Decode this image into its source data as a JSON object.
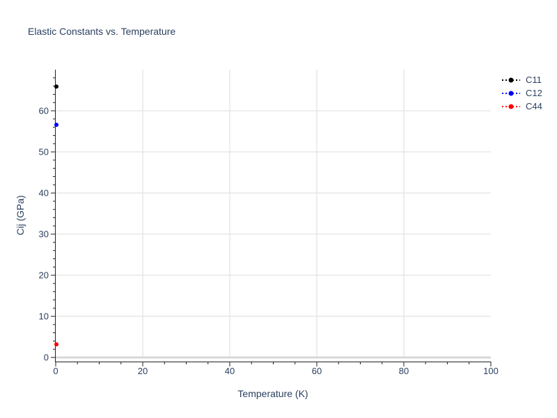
{
  "chart_data": {
    "type": "scatter",
    "title": "Elastic Constants vs. Temperature",
    "xlabel": "Temperature (K)",
    "ylabel": "Cij (GPa)",
    "xlim": [
      0,
      100
    ],
    "ylim": [
      -1,
      70
    ],
    "x_ticks": [
      0,
      20,
      40,
      60,
      80,
      100
    ],
    "y_ticks": [
      0,
      10,
      20,
      30,
      40,
      50,
      60
    ],
    "x_grid_ticks": [
      20,
      40,
      60,
      80
    ],
    "y_grid_ticks": [
      10,
      20,
      30,
      40,
      50,
      60
    ],
    "x_minor_step": 5,
    "y_minor_step": 2,
    "grid": true,
    "zeroline": true,
    "legend_position": "top-right-outside",
    "series": [
      {
        "name": "C11",
        "color": "#000000",
        "marker": "circle",
        "line_style": "dotted",
        "x": [
          0
        ],
        "y": [
          65.9
        ]
      },
      {
        "name": "C12",
        "color": "#0000ff",
        "marker": "circle",
        "line_style": "dotted",
        "x": [
          0
        ],
        "y": [
          56.6
        ]
      },
      {
        "name": "C44",
        "color": "#ff0000",
        "marker": "circle",
        "line_style": "dotted",
        "x": [
          0
        ],
        "y": [
          3.2
        ]
      }
    ],
    "colors": {
      "text": "#2a3f5f",
      "grid": "#e5e5e5",
      "zeroline": "#d8d8d8",
      "axis": "#1f1f1f",
      "background": "#ffffff"
    }
  }
}
